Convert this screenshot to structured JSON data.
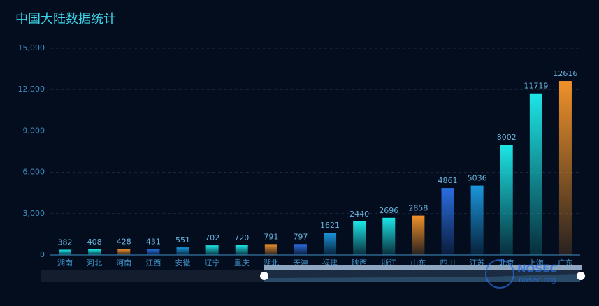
{
  "chart_data": {
    "type": "bar",
    "title": "中国大陆数据统计",
    "categories": [
      "湖南",
      "河北",
      "河南",
      "江西",
      "安徽",
      "辽宁",
      "重庆",
      "湖北",
      "天津",
      "福建",
      "陕西",
      "浙江",
      "山东",
      "四川",
      "江苏",
      "北京",
      "上海",
      "广东"
    ],
    "values": [
      382,
      408,
      428,
      431,
      551,
      702,
      720,
      791,
      797,
      1621,
      2440,
      2696,
      2858,
      4861,
      5036,
      8002,
      11719,
      12616
    ],
    "colors": [
      "#1de6e6",
      "#1de6e6",
      "#f0922a",
      "#2a6ee0",
      "#1a96dc",
      "#1de6e6",
      "#1de6e6",
      "#f0922a",
      "#2a6ee0",
      "#1a96dc",
      "#1de6e6",
      "#1de6e6",
      "#f0922a",
      "#2a6ee0",
      "#1a96dc",
      "#1de6e6",
      "#1de6e6",
      "#f0922a"
    ],
    "ylim": [
      0,
      15000
    ],
    "yticks": [
      0,
      {
        "value": 3000,
        "label": "3,000"
      },
      {
        "value": 6000,
        "label": "6,000"
      },
      {
        "value": 9000,
        "label": "9,000"
      },
      {
        "value": 12000,
        "label": "12,000"
      },
      {
        "value": 15000,
        "label": "15,000"
      }
    ],
    "grid": true,
    "watermark": [
      "NOSEC",
      "nosec.org"
    ]
  }
}
